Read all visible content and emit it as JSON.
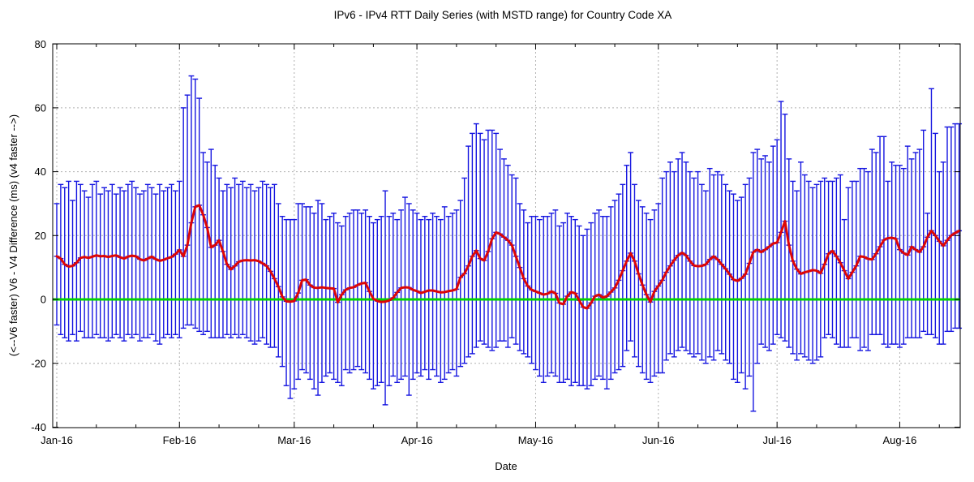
{
  "title": "IPv6 - IPv4 RTT Daily Series  (with MSTD range) for Country Code  XA",
  "axes": {
    "x_label": "Date",
    "y_label": "(<--V6 faster) V6 - V4 Difference (ms) (v4 faster -->)",
    "x_tick_labels": [
      "Jan-16",
      "Feb-16",
      "Mar-16",
      "Apr-16",
      "May-16",
      "Jun-16",
      "Jul-16",
      "Aug-16"
    ],
    "y_tick_labels": [
      "-40",
      "-20",
      "0",
      "20",
      "40",
      "60",
      "80"
    ],
    "y_tick_values": [
      -40,
      -20,
      0,
      20,
      40,
      60,
      80
    ]
  },
  "colors": {
    "error_bar": "#1515e0",
    "mean_line": "#dd0606",
    "zero_line": "#00d400",
    "grid": "#b0b0b0",
    "border": "#000000",
    "background": "#ffffff"
  },
  "chart_data": {
    "type": "line",
    "description": "Daily IPv6-IPv4 RTT difference with MSTD (mean +/- std) range error bars",
    "title": "IPv6 - IPv4 RTT Daily Series  (with MSTD range) for Country Code  XA",
    "xlabel": "Date",
    "ylabel": "(<--V6 faster) V6 - V4 Difference (ms) (v4 faster -->)",
    "ylim": [
      -40,
      80
    ],
    "grid": true,
    "legend": "none",
    "x_start": "2016-01-01",
    "x_end": "2016-08-16",
    "x_tick_labels": [
      "Jan-16",
      "Feb-16",
      "Mar-16",
      "Apr-16",
      "May-16",
      "Jun-16",
      "Jul-16",
      "Aug-16"
    ],
    "month_start_day_offsets": [
      0,
      31,
      60,
      91,
      121,
      152,
      182,
      213
    ],
    "minor_tick_day_offsets": [
      10,
      20,
      41,
      51,
      70,
      80,
      101,
      111,
      131,
      141,
      162,
      172,
      192,
      202,
      223
    ],
    "zero_reference_value": 0,
    "series": [
      {
        "name": "smoothed daily mean (ms)",
        "color": "#dd0606",
        "values": [
          13.5,
          12.8,
          11.0,
          10.3,
          10.5,
          11.5,
          13.0,
          13.3,
          13.0,
          13.4,
          13.8,
          13.5,
          13.6,
          13.3,
          13.6,
          13.8,
          13.2,
          12.8,
          13.4,
          13.7,
          13.5,
          12.6,
          12.2,
          12.8,
          13.4,
          12.6,
          12.1,
          12.4,
          12.9,
          13.3,
          14.2,
          15.5,
          13.5,
          17.0,
          24.0,
          29.0,
          29.5,
          26.5,
          22.5,
          16.3,
          17.0,
          18.5,
          15.0,
          11.0,
          9.4,
          10.5,
          11.8,
          12.2,
          12.3,
          12.2,
          12.3,
          12.0,
          11.3,
          10.5,
          8.8,
          6.5,
          4.0,
          0.8,
          -0.6,
          -0.7,
          -0.5,
          2.0,
          6.0,
          6.2,
          4.5,
          3.7,
          3.6,
          3.8,
          3.6,
          3.5,
          3.4,
          -0.9,
          1.5,
          3.0,
          3.6,
          3.8,
          4.5,
          5.0,
          5.2,
          2.5,
          0.2,
          -0.5,
          -0.8,
          -0.7,
          -0.3,
          0.5,
          2.2,
          3.6,
          3.8,
          3.7,
          3.0,
          2.6,
          2.0,
          2.4,
          2.8,
          2.8,
          2.5,
          2.2,
          2.3,
          2.6,
          2.8,
          3.2,
          6.9,
          8.1,
          10.5,
          13.5,
          15.3,
          12.8,
          12.2,
          15.0,
          19.0,
          21.0,
          20.5,
          19.5,
          18.5,
          17.0,
          13.5,
          10.0,
          6.5,
          4.2,
          3.0,
          2.5,
          2.0,
          1.5,
          1.8,
          2.5,
          1.9,
          -1.1,
          -1.5,
          1.0,
          2.3,
          1.9,
          -0.3,
          -2.4,
          -2.8,
          -1.1,
          1.0,
          1.5,
          0.6,
          1.0,
          2.3,
          3.6,
          6.0,
          9.0,
          12.0,
          14.5,
          12.0,
          8.0,
          4.5,
          1.5,
          -0.8,
          2.5,
          4.2,
          6.0,
          8.5,
          10.5,
          12.3,
          13.8,
          14.6,
          13.8,
          12.0,
          10.6,
          10.4,
          10.5,
          11.0,
          12.5,
          13.5,
          12.5,
          11.0,
          9.6,
          7.9,
          6.2,
          5.8,
          6.6,
          7.9,
          11.3,
          14.8,
          15.6,
          14.8,
          15.6,
          16.5,
          17.5,
          17.8,
          21.0,
          24.5,
          17.0,
          12.0,
          9.5,
          8.0,
          8.5,
          8.8,
          9.2,
          9.0,
          8.2,
          11.0,
          14.3,
          15.2,
          13.5,
          11.5,
          9.0,
          6.5,
          8.5,
          10.5,
          13.5,
          13.3,
          12.7,
          12.5,
          14.3,
          16.5,
          18.6,
          19.2,
          19.3,
          19.0,
          15.6,
          14.5,
          13.9,
          16.5,
          15.6,
          14.8,
          16.5,
          19.5,
          21.5,
          20.0,
          18.2,
          16.8,
          18.5,
          20.0,
          20.8,
          21.5
        ]
      },
      {
        "name": "mean + std (upper MSTD bound, ms)",
        "color": "#1515e0",
        "values": [
          30,
          36,
          35,
          37,
          31,
          37,
          36,
          34,
          32,
          36,
          37,
          33,
          35,
          34,
          36,
          33,
          35,
          34,
          36,
          37,
          35,
          33,
          34,
          36,
          35,
          33,
          36,
          34,
          35,
          36,
          34,
          37,
          60,
          64,
          70,
          69,
          63,
          46,
          43,
          47,
          42,
          38,
          34,
          36,
          35,
          38,
          36,
          37,
          35,
          36,
          34,
          35,
          37,
          36,
          35,
          36,
          30,
          26,
          25,
          25,
          25,
          30,
          30,
          29,
          29,
          27,
          31,
          30,
          25,
          26,
          27,
          24,
          23,
          26,
          27,
          28,
          28,
          27,
          28,
          26,
          24,
          25,
          26,
          34,
          26,
          27,
          25,
          28,
          32,
          30,
          28,
          27,
          25,
          26,
          25,
          27,
          26,
          25,
          29,
          26,
          27,
          28,
          31,
          38,
          48,
          52,
          55,
          52,
          50,
          53,
          53,
          52,
          47,
          44,
          42,
          39,
          38,
          30,
          28,
          24,
          26,
          26,
          25,
          26,
          26,
          27,
          28,
          23,
          24,
          27,
          26,
          25,
          23,
          20,
          22,
          24,
          27,
          28,
          26,
          26,
          29,
          31,
          33,
          36,
          42,
          46,
          36,
          31,
          29,
          27,
          25,
          28,
          30,
          38,
          40,
          43,
          40,
          44,
          46,
          43,
          40,
          38,
          40,
          36,
          34,
          41,
          39,
          40,
          39,
          36,
          34,
          33,
          31,
          32,
          36,
          38,
          46,
          47,
          44,
          45,
          43,
          48,
          50,
          62,
          58,
          44,
          37,
          34,
          43,
          39,
          37,
          35,
          36,
          37,
          38,
          37,
          37,
          38,
          39,
          25,
          35,
          37,
          37,
          41,
          41,
          40,
          47,
          46,
          51,
          51,
          37,
          43,
          42,
          42,
          41,
          48,
          44,
          46,
          47,
          53,
          27,
          66,
          52,
          40,
          43,
          54,
          54,
          55,
          55
        ]
      },
      {
        "name": "mean - std (lower MSTD bound, ms)",
        "color": "#1515e0",
        "values": [
          -8,
          -11,
          -12,
          -13,
          -11,
          -13,
          -10,
          -12,
          -12,
          -12,
          -11,
          -12,
          -12,
          -13,
          -12,
          -11,
          -12,
          -13,
          -11,
          -12,
          -11,
          -13,
          -12,
          -12,
          -11,
          -13,
          -14,
          -12,
          -11,
          -12,
          -11,
          -12,
          -9,
          -8,
          -8,
          -9,
          -10,
          -11,
          -10,
          -12,
          -12,
          -12,
          -12,
          -11,
          -12,
          -11,
          -12,
          -11,
          -12,
          -13,
          -14,
          -13,
          -12,
          -14,
          -15,
          -15,
          -18,
          -21,
          -27,
          -31,
          -28,
          -25,
          -22,
          -23,
          -25,
          -28,
          -30,
          -26,
          -24,
          -23,
          -25,
          -26,
          -27,
          -22,
          -23,
          -22,
          -21,
          -22,
          -23,
          -25,
          -28,
          -27,
          -26,
          -33,
          -27,
          -24,
          -26,
          -25,
          -24,
          -30,
          -25,
          -23,
          -24,
          -22,
          -25,
          -22,
          -24,
          -26,
          -25,
          -23,
          -22,
          -24,
          -21,
          -20,
          -18,
          -17,
          -15,
          -13,
          -14,
          -15,
          -16,
          -15,
          -13,
          -13,
          -15,
          -12,
          -14,
          -16,
          -17,
          -18,
          -20,
          -22,
          -24,
          -26,
          -24,
          -23,
          -24,
          -26,
          -26,
          -25,
          -27,
          -26,
          -27,
          -27,
          -28,
          -27,
          -25,
          -24,
          -25,
          -28,
          -25,
          -23,
          -22,
          -21,
          -16,
          -13,
          -18,
          -21,
          -23,
          -25,
          -26,
          -24,
          -23,
          -23,
          -19,
          -17,
          -18,
          -16,
          -15,
          -16,
          -17,
          -18,
          -17,
          -19,
          -20,
          -18,
          -19,
          -16,
          -17,
          -19,
          -20,
          -25,
          -26,
          -23,
          -28,
          -24,
          -35,
          -20,
          -14,
          -15,
          -16,
          -14,
          -11,
          -12,
          -13,
          -15,
          -17,
          -19,
          -17,
          -18,
          -19,
          -20,
          -19,
          -18,
          -12,
          -11,
          -12,
          -14,
          -15,
          -15,
          -15,
          -12,
          -12,
          -16,
          -15,
          -16,
          -11,
          -11,
          -11,
          -14,
          -15,
          -14,
          -14,
          -15,
          -14,
          -12,
          -12,
          -12,
          -12,
          -10,
          -11,
          -11,
          -12,
          -14,
          -14,
          -10,
          -10,
          -9,
          -9
        ]
      }
    ]
  }
}
